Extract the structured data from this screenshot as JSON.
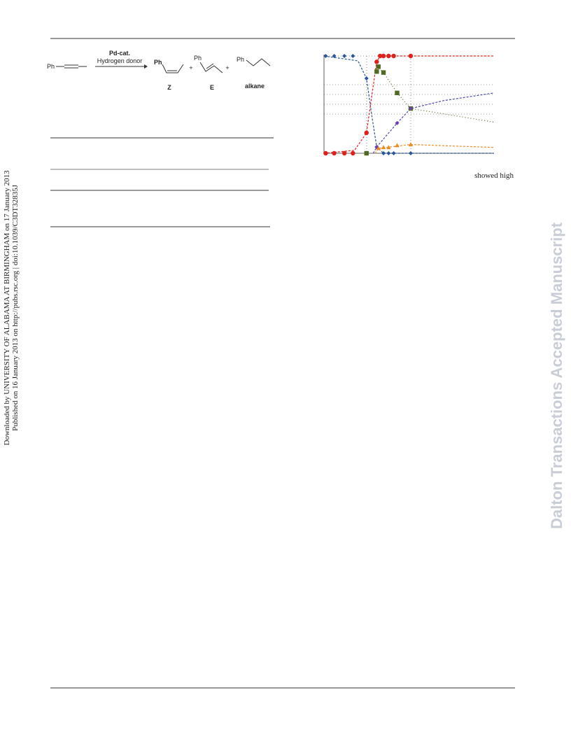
{
  "sidebar": {
    "downloaded": "Downloaded by UNIVERSITY OF ALABAMA AT BIRMINGHAM on 17 January 2013",
    "published": "Published on 16 January 2013 on http://pubs.rsc.org | doi:10.1039/C3DT32835J"
  },
  "watermark": "Dalton Transactions Accepted Manuscript",
  "scheme": {
    "reactant": "Ph",
    "catalyst": "Pd-cat.",
    "reagent": "Hydrogen donor",
    "plus": "+",
    "products": [
      {
        "group": "Ph",
        "label": "Z"
      },
      {
        "group": "Ph",
        "label": "E"
      },
      {
        "group": "Ph",
        "label": "alkane"
      }
    ]
  },
  "figure": {
    "xlim": [
      0,
      100
    ],
    "ylim": [
      0,
      100
    ],
    "series": [
      {
        "color": "#2a5599",
        "marker": "diamond",
        "x": [
          1,
          6,
          12,
          17,
          25,
          31,
          35,
          38,
          41,
          51
        ],
        "y": [
          100,
          100,
          100,
          100,
          77,
          6.5,
          0,
          0,
          0,
          0
        ]
      },
      {
        "color": "#e0201b",
        "marker": "circle",
        "x": [
          1,
          6,
          12,
          17,
          25,
          31,
          33,
          35,
          38,
          41,
          51
        ],
        "y": [
          0,
          0,
          0,
          0,
          21,
          94,
          100,
          100,
          100,
          100,
          100
        ]
      },
      {
        "color": "#4f6b22",
        "marker": "square",
        "x": [
          25,
          31,
          32,
          35,
          43,
          51
        ],
        "y": [
          0,
          84,
          89,
          83,
          62,
          46
        ]
      },
      {
        "color": "#7040b0",
        "marker": "diamond",
        "x": [
          31,
          43,
          51
        ],
        "y": [
          6.5,
          31,
          46
        ]
      },
      {
        "color": "#f08a24",
        "marker": "triangle",
        "x": [
          32,
          35,
          38,
          43,
          51
        ],
        "y": [
          5,
          6,
          6,
          8,
          9
        ]
      }
    ],
    "lines": [
      {
        "color": "#2a5599",
        "x": [
          0,
          20,
          25,
          28,
          31,
          35,
          100
        ],
        "y": [
          100,
          95,
          77,
          40,
          6.5,
          0,
          0
        ]
      },
      {
        "color": "#e0201b",
        "x": [
          0,
          18,
          25,
          29,
          31,
          33,
          100
        ],
        "y": [
          0,
          3,
          21,
          70,
          94,
          100,
          100
        ]
      },
      {
        "color": "#4f6b22",
        "x": [
          31,
          35,
          43,
          51,
          100
        ],
        "y": [
          89,
          83,
          62,
          46,
          32
        ]
      },
      {
        "color": "#4a4ab0",
        "x": [
          29,
          31,
          43,
          51,
          70,
          100
        ],
        "y": [
          0,
          6.5,
          31,
          46,
          54,
          62
        ]
      },
      {
        "color": "#f08a24",
        "x": [
          30,
          32,
          51,
          100
        ],
        "y": [
          0,
          5,
          9,
          6
        ]
      }
    ]
  },
  "text_fragment": "showed high"
}
